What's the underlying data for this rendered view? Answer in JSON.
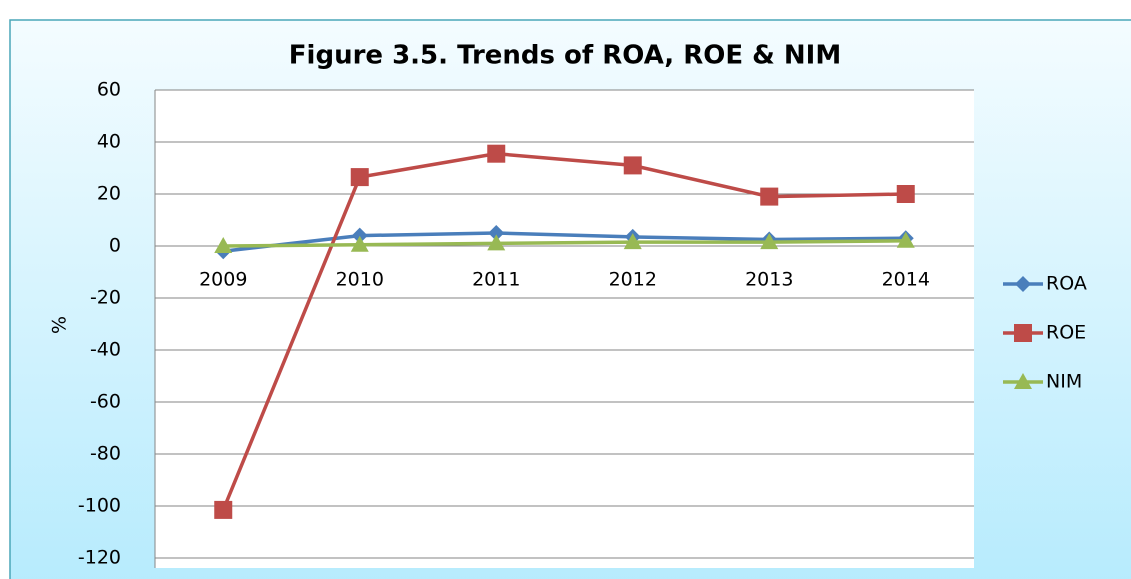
{
  "chart_data": {
    "type": "line",
    "title": "Figure 3.5. Trends of ROA, ROE & NIM",
    "y_label": "%",
    "categories": [
      "2009",
      "2010",
      "2011",
      "2012",
      "2013",
      "2014"
    ],
    "series": [
      {
        "name": "ROA",
        "color": "#4a7ebb",
        "marker": "diamond",
        "values": [
          -2,
          4,
          5,
          3.5,
          2.5,
          3
        ]
      },
      {
        "name": "ROE",
        "color": "#be4b48",
        "marker": "square",
        "values": [
          -101.5,
          26.5,
          35.5,
          31,
          19,
          20
        ]
      },
      {
        "name": "NIM",
        "color": "#98b954",
        "marker": "triangle",
        "values": [
          0,
          0.5,
          1,
          1.5,
          1.5,
          2
        ]
      }
    ],
    "ylim": [
      -120,
      60
    ],
    "yticks": [
      -120,
      -100,
      -80,
      -60,
      -40,
      -20,
      0,
      20,
      40,
      60
    ],
    "grid": true,
    "legend": "right"
  }
}
